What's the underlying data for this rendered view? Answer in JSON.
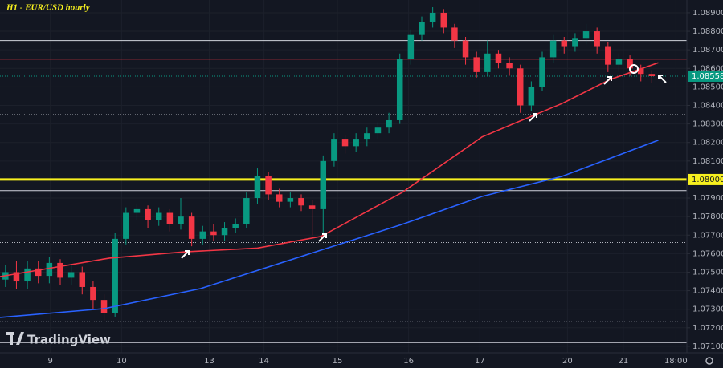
{
  "chart_data": {
    "type": "candlestick",
    "title": "H1 - EUR/USD hourly",
    "watermark": "TradingView",
    "up_color": "#089981",
    "down_color": "#f23645",
    "grid": true,
    "xlim": [
      -0.5,
      62.2
    ],
    "ylim": [
      1.07065,
      1.08969
    ],
    "yticks": [
      {
        "value": 1.089,
        "label": "1.08900"
      },
      {
        "value": 1.088,
        "label": "1.08800"
      },
      {
        "value": 1.087,
        "label": "1.08700"
      },
      {
        "value": 1.086,
        "label": "1.08600"
      },
      {
        "value": 1.085,
        "label": "1.08500"
      },
      {
        "value": 1.084,
        "label": "1.08400"
      },
      {
        "value": 1.083,
        "label": "1.08300"
      },
      {
        "value": 1.082,
        "label": "1.08200"
      },
      {
        "value": 1.081,
        "label": "1.08100"
      },
      {
        "value": 1.079,
        "label": "1.07900"
      },
      {
        "value": 1.078,
        "label": "1.07800"
      },
      {
        "value": 1.077,
        "label": "1.07700"
      },
      {
        "value": 1.076,
        "label": "1.07600"
      },
      {
        "value": 1.075,
        "label": "1.07500"
      },
      {
        "value": 1.074,
        "label": "1.07400"
      },
      {
        "value": 1.073,
        "label": "1.07300"
      },
      {
        "value": 1.072,
        "label": "1.07200"
      },
      {
        "value": 1.071,
        "label": "1.07100"
      }
    ],
    "xticks": [
      {
        "value": 4.1,
        "label": "9"
      },
      {
        "value": 10.6,
        "label": "10"
      },
      {
        "value": 18.6,
        "label": "13"
      },
      {
        "value": 23.6,
        "label": "14"
      },
      {
        "value": 30.3,
        "label": "15"
      },
      {
        "value": 36.8,
        "label": "16"
      },
      {
        "value": 43.3,
        "label": "17"
      },
      {
        "value": 51.3,
        "label": "20"
      },
      {
        "value": 56.4,
        "label": "21"
      },
      {
        "value": 61.2,
        "label": "18:00"
      }
    ],
    "candles": {
      "open": [
        1.0746,
        1.075,
        1.0745,
        1.0752,
        1.0748,
        1.0755,
        1.0747,
        1.075,
        1.0742,
        1.0735,
        1.0728,
        1.0768,
        1.0782,
        1.0784,
        1.0778,
        1.0782,
        1.0776,
        1.078,
        1.0768,
        1.0772,
        1.077,
        1.0774,
        1.0776,
        1.079,
        1.0802,
        1.0792,
        1.0788,
        1.079,
        1.0786,
        1.0784,
        1.081,
        1.0822,
        1.0818,
        1.0822,
        1.0825,
        1.0828,
        1.0832,
        1.0865,
        1.0878,
        1.0885,
        1.089,
        1.0882,
        1.0875,
        1.0866,
        1.0858,
        1.0868,
        1.0863,
        1.086,
        1.084,
        1.085,
        1.0866,
        1.0875,
        1.0872,
        1.0876,
        1.088,
        1.0872,
        1.0862,
        1.0865,
        1.086,
        1.0857
      ],
      "high": [
        1.0754,
        1.0756,
        1.0756,
        1.0756,
        1.0758,
        1.0757,
        1.0754,
        1.0753,
        1.0745,
        1.0738,
        1.0771,
        1.0785,
        1.0787,
        1.0786,
        1.0785,
        1.0784,
        1.079,
        1.0782,
        1.0775,
        1.0776,
        1.0777,
        1.0779,
        1.0793,
        1.0806,
        1.0804,
        1.0795,
        1.0793,
        1.0792,
        1.0789,
        1.0813,
        1.0825,
        1.0824,
        1.0825,
        1.0828,
        1.0831,
        1.0836,
        1.0868,
        1.0881,
        1.0888,
        1.0893,
        1.0892,
        1.0884,
        1.0877,
        1.0869,
        1.0875,
        1.087,
        1.0866,
        1.0862,
        1.0853,
        1.0869,
        1.0878,
        1.0877,
        1.0879,
        1.0884,
        1.0882,
        1.0874,
        1.0868,
        1.0867,
        1.0862,
        1.0859
      ],
      "low": [
        1.0742,
        1.0741,
        1.0741,
        1.0744,
        1.0744,
        1.0743,
        1.0743,
        1.0738,
        1.073,
        1.0724,
        1.0726,
        1.0765,
        1.0778,
        1.0774,
        1.0775,
        1.0772,
        1.0773,
        1.0764,
        1.0765,
        1.0767,
        1.0767,
        1.0771,
        1.0774,
        1.0787,
        1.0789,
        1.0785,
        1.0785,
        1.0783,
        1.077,
        1.077,
        1.0807,
        1.0814,
        1.0815,
        1.0818,
        1.0822,
        1.0825,
        1.083,
        1.0862,
        1.0875,
        1.0882,
        1.0879,
        1.0871,
        1.0862,
        1.0855,
        1.0856,
        1.086,
        1.0856,
        1.0836,
        1.0837,
        1.0848,
        1.0863,
        1.0868,
        1.0869,
        1.0873,
        1.0868,
        1.0858,
        1.0858,
        1.0856,
        1.0853,
        1.0852
      ],
      "close": [
        1.075,
        1.0745,
        1.0752,
        1.0748,
        1.0755,
        1.0747,
        1.075,
        1.0742,
        1.0735,
        1.0728,
        1.0768,
        1.0782,
        1.0784,
        1.0778,
        1.0782,
        1.0776,
        1.078,
        1.0768,
        1.0772,
        1.077,
        1.0774,
        1.0776,
        1.079,
        1.0802,
        1.0792,
        1.0788,
        1.079,
        1.0786,
        1.0784,
        1.081,
        1.0822,
        1.0818,
        1.0822,
        1.0825,
        1.0828,
        1.0832,
        1.0865,
        1.0878,
        1.0885,
        1.089,
        1.0882,
        1.0875,
        1.0866,
        1.0858,
        1.0868,
        1.0863,
        1.086,
        1.084,
        1.085,
        1.0866,
        1.0875,
        1.0872,
        1.0876,
        1.088,
        1.0872,
        1.0862,
        1.0865,
        1.086,
        1.0857,
        1.08558
      ]
    },
    "lines": [
      {
        "color": "#f23645",
        "x": [
          -0.5,
          9.5,
          16.4,
          23,
          28.8,
          36.2,
          43.5,
          50.8,
          55.2,
          59.6
        ],
        "values": [
          1.07476,
          1.07576,
          1.0761,
          1.0763,
          1.07693,
          1.0793,
          1.0823,
          1.0841,
          1.0854,
          1.0863
        ]
      },
      {
        "color": "#2962ff",
        "x": [
          -0.5,
          9.0,
          17.8,
          28.8,
          36.2,
          43.5,
          50.8,
          59.6
        ],
        "values": [
          1.07256,
          1.07303,
          1.07411,
          1.07619,
          1.07758,
          1.07909,
          1.08017,
          1.08212
        ]
      }
    ],
    "levels": [
      {
        "value": 1.0875,
        "color": "#d1d4dc",
        "style": "solid",
        "width": 1
      },
      {
        "value": 1.0865,
        "color": "#f23645",
        "style": "solid",
        "width": 1
      },
      {
        "value": 1.0835,
        "color": "#b2b5be",
        "style": "dotted",
        "width": 1
      },
      {
        "value": 1.08,
        "color": "#f7f01f",
        "style": "solid",
        "width": 3,
        "label": "1.08000"
      },
      {
        "value": 1.0794,
        "color": "#d1d4dc",
        "style": "solid",
        "width": 1
      },
      {
        "value": 1.0766,
        "color": "#b2b5be",
        "style": "dotted",
        "width": 1
      },
      {
        "value": 1.07235,
        "color": "#b2b5be",
        "style": "dotted",
        "width": 1
      },
      {
        "value": 1.0712,
        "color": "#d1d4dc",
        "style": "solid",
        "width": 1
      }
    ],
    "price": {
      "value": 1.08558,
      "label": "1.08558",
      "color": "#089981"
    }
  }
}
